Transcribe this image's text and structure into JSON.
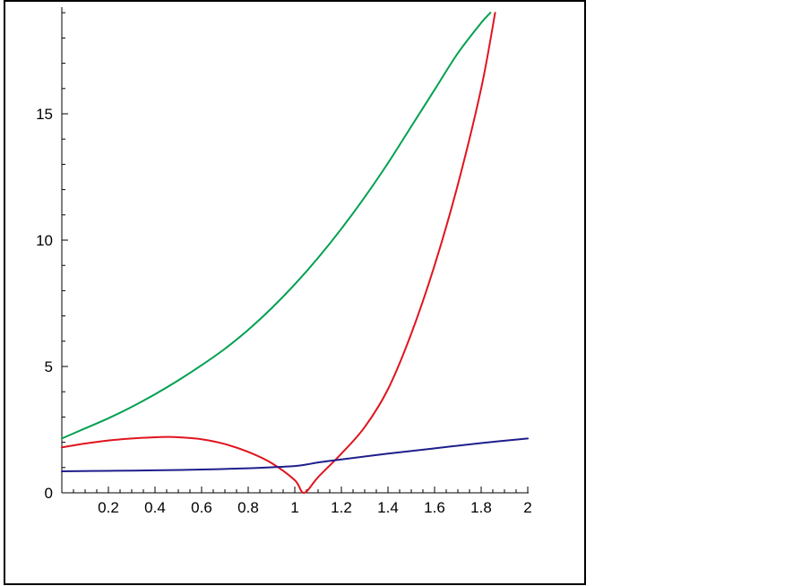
{
  "chart_data": {
    "type": "line",
    "title": "",
    "xlabel": "",
    "ylabel": "",
    "xlim": [
      0,
      2
    ],
    "ylim": [
      0,
      19
    ],
    "grid": false,
    "x_ticks": [
      "0.2",
      "0.4",
      "0.6",
      "0.8",
      "1",
      "1.2",
      "1.4",
      "1.6",
      "1.8",
      "2"
    ],
    "y_ticks": [
      "0",
      "5",
      "10",
      "15"
    ],
    "series": [
      {
        "color": "#00a050",
        "x": [
          0,
          0.1,
          0.2,
          0.3,
          0.4,
          0.5,
          0.6,
          0.7,
          0.8,
          0.9,
          1.0,
          1.1,
          1.2,
          1.3,
          1.4,
          1.5,
          1.6,
          1.7,
          1.8,
          1.84
        ],
        "y": [
          2.15,
          2.55,
          2.95,
          3.4,
          3.9,
          4.45,
          5.05,
          5.7,
          6.45,
          7.3,
          8.25,
          9.3,
          10.45,
          11.7,
          13.05,
          14.5,
          15.95,
          17.4,
          18.6,
          19.0
        ]
      },
      {
        "color": "#e0141e",
        "x": [
          0,
          0.1,
          0.2,
          0.3,
          0.4,
          0.45,
          0.5,
          0.6,
          0.7,
          0.8,
          0.9,
          1.0,
          1.04,
          1.1,
          1.2,
          1.3,
          1.4,
          1.5,
          1.6,
          1.7,
          1.8,
          1.86
        ],
        "y": [
          1.8,
          1.95,
          2.07,
          2.15,
          2.2,
          2.21,
          2.2,
          2.12,
          1.93,
          1.62,
          1.18,
          0.5,
          0.0,
          0.62,
          1.55,
          2.6,
          4.1,
          6.3,
          9.0,
          12.2,
          16.0,
          19.0
        ]
      },
      {
        "color": "#1e1e8c",
        "x": [
          0,
          0.2,
          0.4,
          0.6,
          0.8,
          0.9,
          1.0,
          1.05,
          1.1,
          1.2,
          1.4,
          1.6,
          1.8,
          2.0
        ],
        "y": [
          0.85,
          0.87,
          0.89,
          0.92,
          0.97,
          1.01,
          1.06,
          1.12,
          1.2,
          1.32,
          1.55,
          1.76,
          1.97,
          2.15
        ]
      }
    ]
  }
}
